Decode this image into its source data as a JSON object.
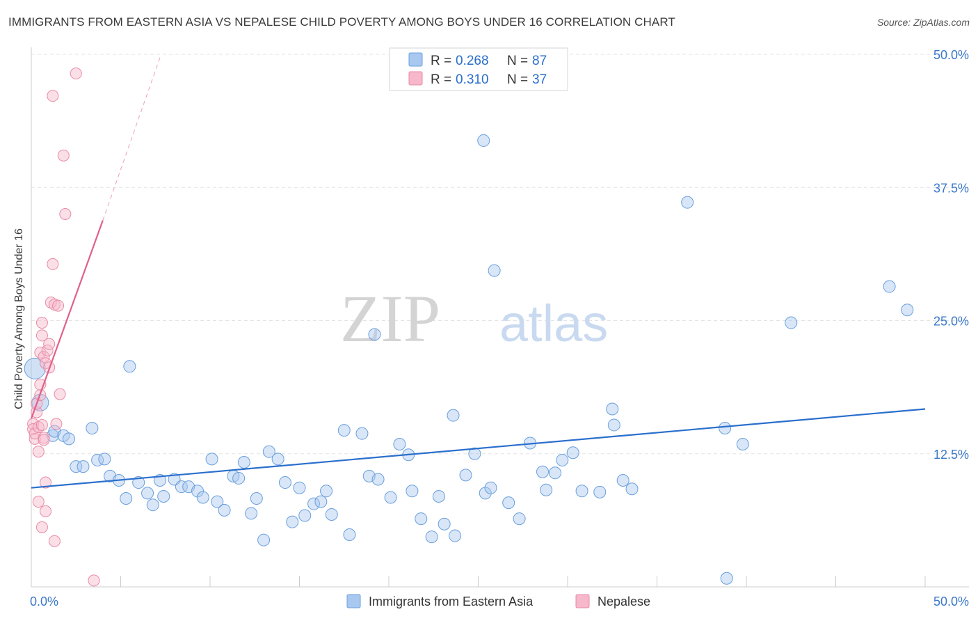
{
  "header": {
    "title": "IMMIGRANTS FROM EASTERN ASIA VS NEPALESE CHILD POVERTY AMONG BOYS UNDER 16 CORRELATION CHART",
    "source": "Source: ZipAtlas.com"
  },
  "watermark": {
    "zip": "ZIP",
    "atlas": "atlas"
  },
  "colors": {
    "blue_fill": "#a9c8ef",
    "blue_stroke": "#6a9fdc",
    "blue_line": "#2a6fcd",
    "pink_fill": "#f6b8ca",
    "pink_stroke": "#e88aa6",
    "pink_line": "#e0608a",
    "axis_text": "#3a78c9",
    "grid": "#e3e3e3"
  },
  "legend_box": {
    "rows": [
      {
        "r_label": "R =",
        "r_value": "0.268",
        "n_label": "N =",
        "n_value": "87"
      },
      {
        "r_label": "R =",
        "r_value": "0.310",
        "n_label": "N =",
        "n_value": "37"
      }
    ]
  },
  "chart_data": {
    "type": "scatter",
    "title": "IMMIGRANTS FROM EASTERN ASIA VS NEPALESE CHILD POVERTY AMONG BOYS UNDER 16 CORRELATION CHART",
    "xlabel": "",
    "ylabel": "Child Poverty Among Boys Under 16",
    "xlim": [
      0,
      50
    ],
    "ylim": [
      0,
      50
    ],
    "x_tick_labels": [
      {
        "value": 0,
        "label": "0.0%"
      },
      {
        "value": 50,
        "label": "50.0%"
      }
    ],
    "y_tick_labels": [
      {
        "value": 12.5,
        "label": "12.5%"
      },
      {
        "value": 25,
        "label": "25.0%"
      },
      {
        "value": 37.5,
        "label": "37.5%"
      },
      {
        "value": 50,
        "label": "50.0%"
      }
    ],
    "legend": [
      "Immigrants from Eastern Asia",
      "Nepalese"
    ],
    "series": [
      {
        "name": "Immigrants from Eastern Asia",
        "R": 0.268,
        "N": 87,
        "trend": {
          "x": [
            0,
            50
          ],
          "y": [
            9.3,
            16.7
          ]
        },
        "points": [
          [
            0.2,
            20.5
          ],
          [
            0.5,
            17.3
          ],
          [
            1.2,
            14.2
          ],
          [
            1.3,
            14.6
          ],
          [
            1.8,
            14.2
          ],
          [
            2.1,
            13.9
          ],
          [
            3.4,
            14.9
          ],
          [
            2.5,
            11.3
          ],
          [
            2.9,
            11.3
          ],
          [
            3.7,
            11.9
          ],
          [
            4.1,
            12.0
          ],
          [
            4.4,
            10.4
          ],
          [
            4.9,
            10.0
          ],
          [
            5.3,
            8.3
          ],
          [
            5.5,
            20.7
          ],
          [
            6.0,
            9.8
          ],
          [
            6.5,
            8.8
          ],
          [
            6.8,
            7.7
          ],
          [
            7.2,
            10.0
          ],
          [
            7.4,
            8.5
          ],
          [
            8.0,
            10.1
          ],
          [
            8.4,
            9.4
          ],
          [
            8.8,
            9.4
          ],
          [
            9.3,
            9.0
          ],
          [
            9.6,
            8.4
          ],
          [
            10.1,
            12.0
          ],
          [
            10.4,
            8.0
          ],
          [
            10.8,
            7.2
          ],
          [
            11.3,
            10.4
          ],
          [
            11.6,
            10.2
          ],
          [
            11.9,
            11.7
          ],
          [
            12.3,
            6.9
          ],
          [
            12.6,
            8.3
          ],
          [
            13.0,
            4.4
          ],
          [
            13.3,
            12.7
          ],
          [
            13.8,
            12.0
          ],
          [
            14.2,
            9.8
          ],
          [
            14.6,
            6.1
          ],
          [
            15.0,
            9.3
          ],
          [
            15.3,
            6.7
          ],
          [
            15.8,
            7.8
          ],
          [
            16.2,
            8.0
          ],
          [
            16.5,
            9.0
          ],
          [
            16.8,
            6.8
          ],
          [
            17.5,
            14.7
          ],
          [
            17.8,
            4.9
          ],
          [
            18.5,
            14.4
          ],
          [
            18.9,
            10.4
          ],
          [
            19.4,
            10.1
          ],
          [
            19.2,
            23.7
          ],
          [
            20.1,
            8.4
          ],
          [
            20.6,
            13.4
          ],
          [
            21.1,
            12.4
          ],
          [
            21.3,
            9.0
          ],
          [
            21.8,
            6.4
          ],
          [
            22.4,
            4.7
          ],
          [
            22.8,
            8.5
          ],
          [
            23.1,
            5.9
          ],
          [
            23.6,
            16.1
          ],
          [
            23.7,
            4.8
          ],
          [
            24.3,
            10.5
          ],
          [
            24.8,
            12.5
          ],
          [
            25.4,
            8.8
          ],
          [
            25.7,
            9.3
          ],
          [
            25.3,
            41.9
          ],
          [
            25.9,
            29.7
          ],
          [
            26.7,
            7.9
          ],
          [
            27.3,
            6.4
          ],
          [
            27.9,
            13.5
          ],
          [
            28.6,
            10.8
          ],
          [
            28.8,
            9.1
          ],
          [
            29.3,
            10.7
          ],
          [
            29.7,
            11.9
          ],
          [
            30.3,
            12.6
          ],
          [
            30.8,
            9.0
          ],
          [
            31.8,
            8.9
          ],
          [
            32.5,
            16.7
          ],
          [
            32.6,
            15.2
          ],
          [
            33.1,
            10.0
          ],
          [
            33.6,
            9.2
          ],
          [
            36.7,
            36.1
          ],
          [
            38.8,
            14.9
          ],
          [
            38.9,
            0.8
          ],
          [
            39.8,
            13.4
          ],
          [
            42.5,
            24.8
          ],
          [
            48.0,
            28.2
          ],
          [
            49.0,
            26.0
          ]
        ]
      },
      {
        "name": "Nepalese",
        "R": 0.31,
        "N": 37,
        "trend": {
          "x": [
            0,
            4.0
          ],
          "y": [
            15.8,
            34.4
          ]
        },
        "trend_extension": {
          "x": [
            4.0,
            7.2
          ],
          "y": [
            34.4,
            49.7
          ]
        },
        "points": [
          [
            0.1,
            15.3
          ],
          [
            0.1,
            14.8
          ],
          [
            0.2,
            13.9
          ],
          [
            0.2,
            14.4
          ],
          [
            0.3,
            16.4
          ],
          [
            0.3,
            17.2
          ],
          [
            0.4,
            15.0
          ],
          [
            0.4,
            12.7
          ],
          [
            0.5,
            18.0
          ],
          [
            0.5,
            19.0
          ],
          [
            0.5,
            22.0
          ],
          [
            0.6,
            15.2
          ],
          [
            0.6,
            23.6
          ],
          [
            0.6,
            24.8
          ],
          [
            0.7,
            21.6
          ],
          [
            0.7,
            14.0
          ],
          [
            0.7,
            13.8
          ],
          [
            0.8,
            21.0
          ],
          [
            0.9,
            22.2
          ],
          [
            1.0,
            20.6
          ],
          [
            1.0,
            22.8
          ],
          [
            1.1,
            26.7
          ],
          [
            1.2,
            30.3
          ],
          [
            1.3,
            26.5
          ],
          [
            1.4,
            15.3
          ],
          [
            1.5,
            26.4
          ],
          [
            1.6,
            18.1
          ],
          [
            1.8,
            40.5
          ],
          [
            1.9,
            35.0
          ],
          [
            1.2,
            46.1
          ],
          [
            2.5,
            48.2
          ],
          [
            0.8,
            9.8
          ],
          [
            0.4,
            8.0
          ],
          [
            0.6,
            5.6
          ],
          [
            0.8,
            7.1
          ],
          [
            1.3,
            4.3
          ],
          [
            3.5,
            0.6
          ]
        ]
      }
    ]
  }
}
